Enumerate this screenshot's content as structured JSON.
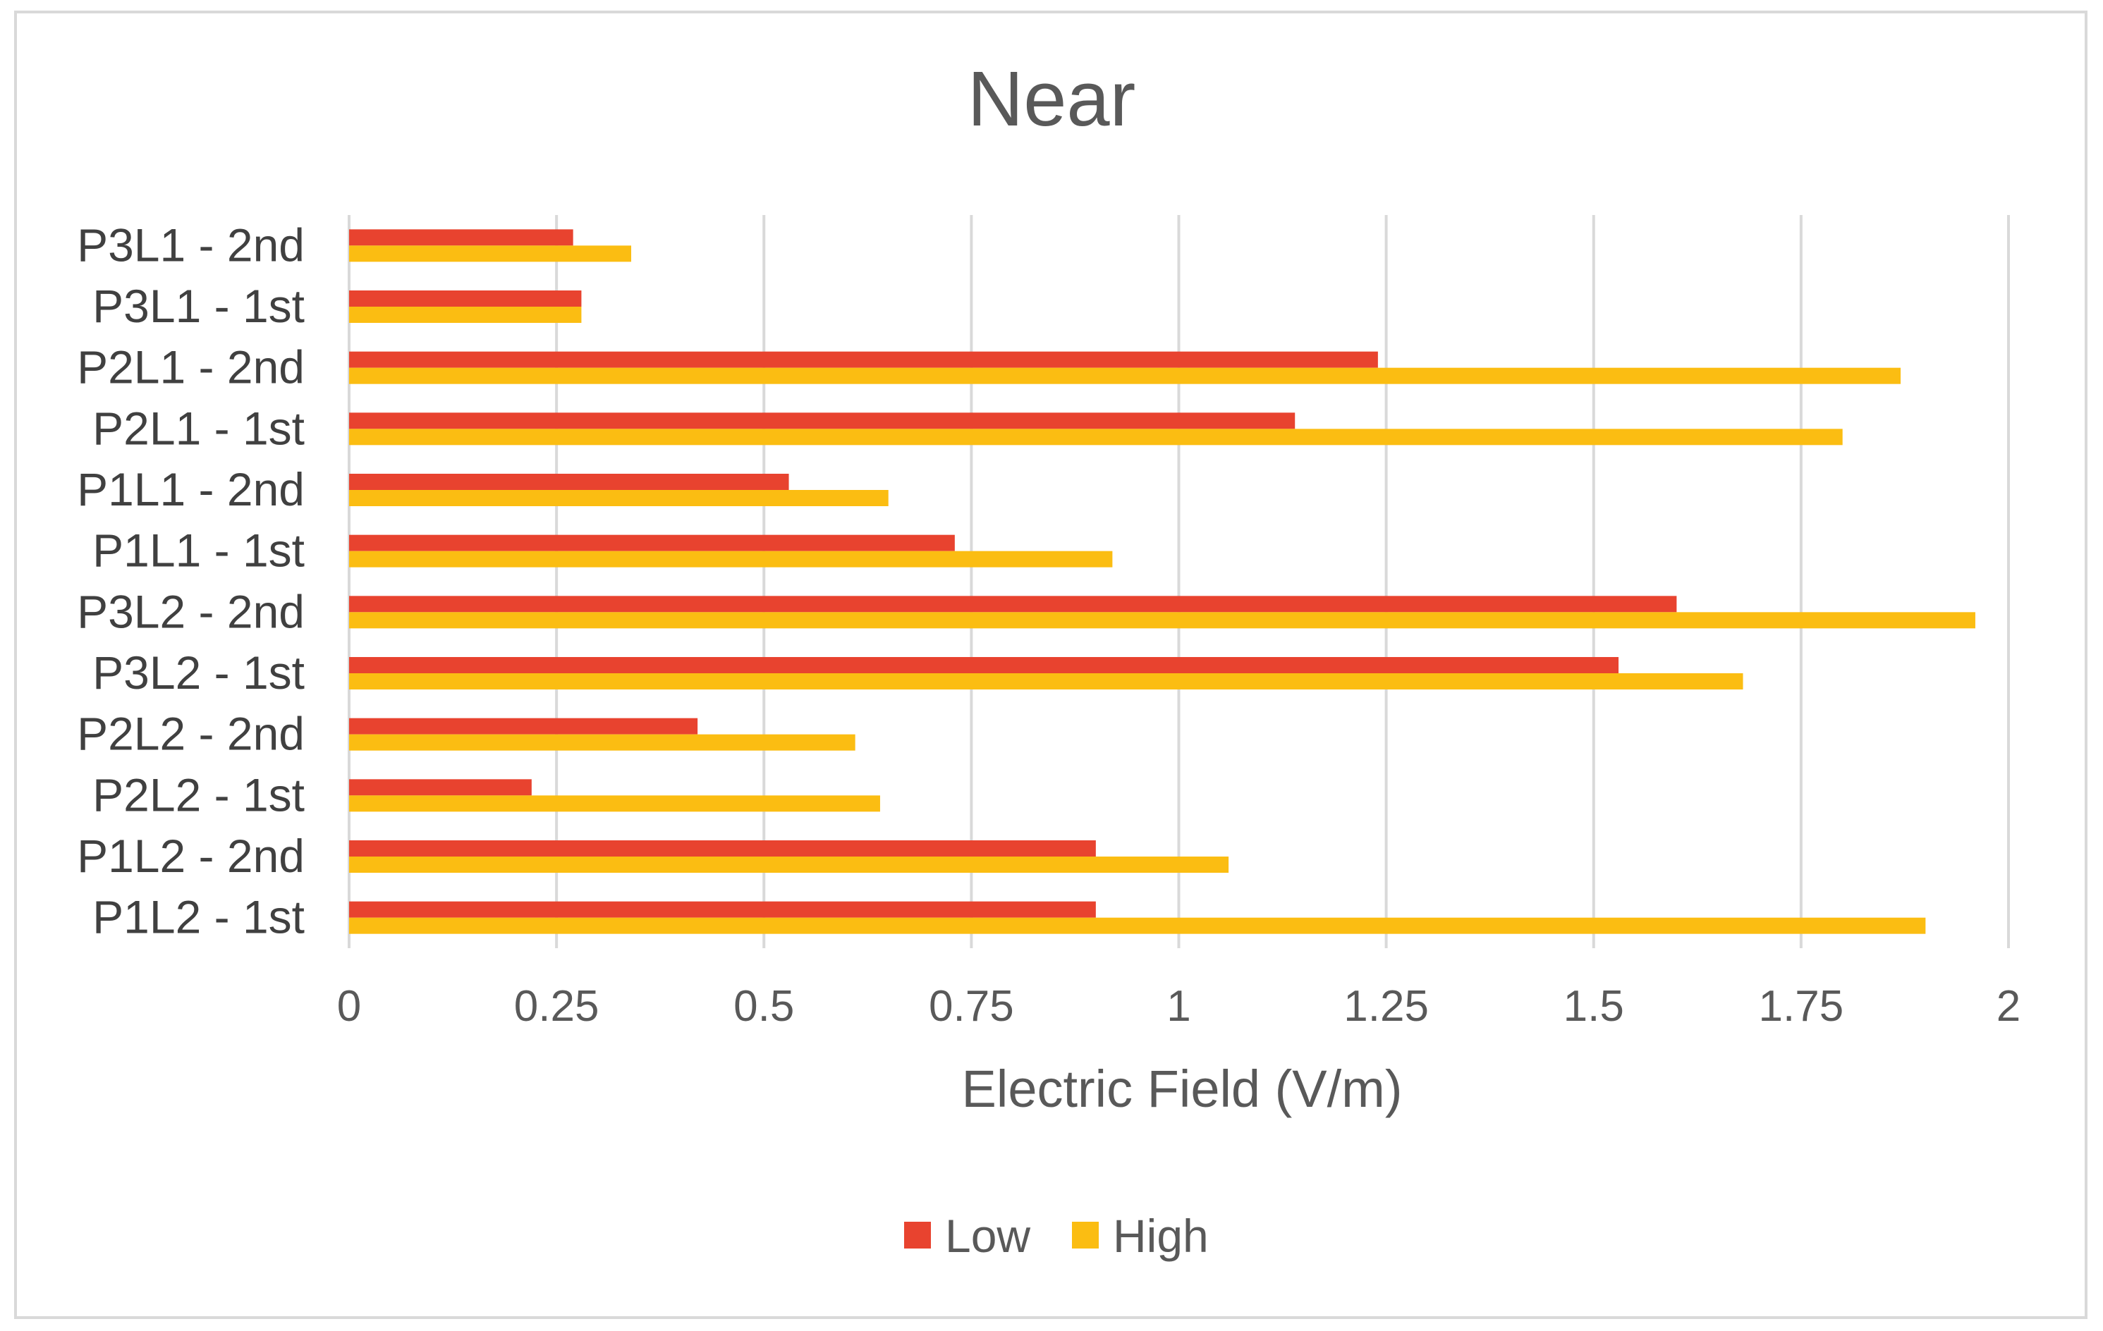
{
  "chart_data": {
    "type": "bar",
    "orientation": "horizontal",
    "title": "Near",
    "xlabel": "Electric Field (V/m)",
    "ylabel": "",
    "xlim": [
      0,
      2
    ],
    "x_ticks": [
      "0",
      "0.25",
      "0.5",
      "0.75",
      "1",
      "1.25",
      "1.5",
      "1.75",
      "2"
    ],
    "x_tick_values": [
      0,
      0.25,
      0.5,
      0.75,
      1,
      1.25,
      1.5,
      1.75,
      2
    ],
    "grid": true,
    "legend_position": "bottom",
    "categories": [
      "P3L1 - 2nd",
      "P3L1 - 1st",
      "P2L1 - 2nd",
      "P2L1 - 1st",
      "P1L1 - 2nd",
      "P1L1 - 1st",
      "P3L2 - 2nd",
      "P3L2 - 1st",
      "P2L2 - 2nd",
      "P2L2 - 1st",
      "P1L2 - 2nd",
      "P1L2 - 1st"
    ],
    "series": [
      {
        "name": "Low",
        "color": "#e8432f",
        "values": [
          0.27,
          0.28,
          1.24,
          1.14,
          0.53,
          0.73,
          1.6,
          1.53,
          0.42,
          0.22,
          0.9,
          0.9
        ]
      },
      {
        "name": "High",
        "color": "#fbbd12",
        "values": [
          0.34,
          0.28,
          1.87,
          1.8,
          0.65,
          0.92,
          1.96,
          1.68,
          0.61,
          0.64,
          1.06,
          1.9
        ]
      }
    ]
  }
}
